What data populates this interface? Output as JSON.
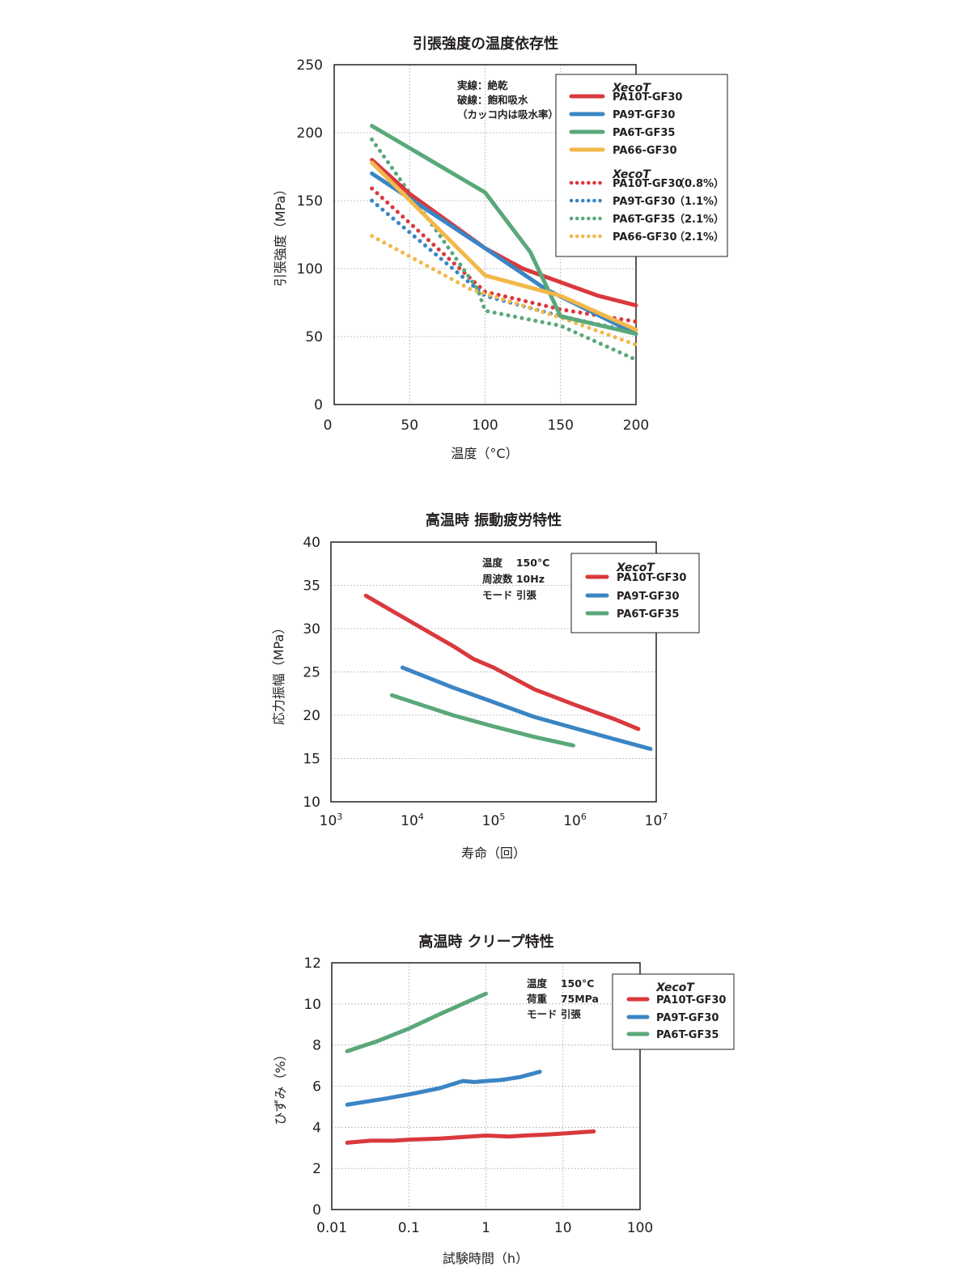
{
  "chart_data": [
    {
      "type": "line",
      "title": "引張強度の温度依存性",
      "xlabel": "温度（°C）",
      "ylabel": "引張強度（MPa）",
      "xlim": [
        0,
        200
      ],
      "ylim": [
        0,
        250
      ],
      "x_ticks": [
        "0",
        "50",
        "100",
        "150",
        "200"
      ],
      "y_ticks": [
        "0",
        "50",
        "100",
        "150",
        "200",
        "250"
      ],
      "notes": [
        "実線：絶乾",
        "破線：飽和吸水",
        "（カッコ内は吸水率）"
      ],
      "brand_label": "XecoT",
      "series": [
        {
          "name": "PA10T-GF30",
          "suffix": "",
          "color": "#d9393d",
          "dashed": false,
          "x": [
            25,
            50,
            100,
            125,
            150,
            175,
            200
          ],
          "y": [
            180,
            155,
            115,
            100,
            90,
            80,
            73
          ]
        },
        {
          "name": "PA9T-GF30",
          "suffix": "",
          "color": "#3a85c3",
          "dashed": false,
          "x": [
            25,
            100,
            140,
            200
          ],
          "y": [
            170,
            115,
            85,
            52
          ]
        },
        {
          "name": "PA6T-GF35",
          "suffix": "",
          "color": "#5aa87a",
          "dashed": false,
          "x": [
            25,
            100,
            130,
            150,
            200
          ],
          "y": [
            205,
            156,
            112,
            65,
            52
          ]
        },
        {
          "name": "PA66-GF30",
          "suffix": "",
          "color": "#f2b84b",
          "dashed": false,
          "x": [
            25,
            100,
            150,
            200
          ],
          "y": [
            178,
            95,
            80,
            55
          ]
        },
        {
          "name": "PA10T-GF30",
          "suffix": "（0.8%）",
          "color": "#d9393d",
          "dashed": true,
          "x": [
            25,
            100,
            150,
            200
          ],
          "y": [
            159,
            83,
            70,
            61
          ]
        },
        {
          "name": "PA9T-GF30",
          "suffix": "（1.1%）",
          "color": "#3a85c3",
          "dashed": true,
          "x": [
            25,
            100,
            150,
            200
          ],
          "y": [
            150,
            80,
            65,
            53
          ]
        },
        {
          "name": "PA6T-GF35",
          "suffix": "（2.1%）",
          "color": "#5aa87a",
          "dashed": true,
          "x": [
            25,
            95,
            100,
            150,
            200
          ],
          "y": [
            195,
            85,
            69,
            58,
            33
          ]
        },
        {
          "name": "PA66-GF30",
          "suffix": "（2.1%）",
          "color": "#f2b84b",
          "dashed": true,
          "x": [
            25,
            90,
            150,
            200
          ],
          "y": [
            124,
            85,
            64,
            44
          ]
        }
      ]
    },
    {
      "type": "line",
      "title": "高温時 振動疲労特性",
      "xlabel": "寿命（回）",
      "ylabel": "応力振幅（MPa）",
      "xscale": "log",
      "xlim_log10": [
        3,
        7
      ],
      "ylim": [
        10,
        40
      ],
      "x_ticks": [
        {
          "base": "10",
          "exp": "3"
        },
        {
          "base": "10",
          "exp": "4"
        },
        {
          "base": "10",
          "exp": "5"
        },
        {
          "base": "10",
          "exp": "6"
        },
        {
          "base": "10",
          "exp": "7"
        }
      ],
      "y_ticks": [
        "10",
        "15",
        "20",
        "25",
        "30",
        "35",
        "40"
      ],
      "notes": [
        "温度　 150°C",
        "周波数  10Hz",
        "モード  引張"
      ],
      "brand_label": "XecoT",
      "series": [
        {
          "name": "PA10T-GF30",
          "color": "#d9393d",
          "x_log10": [
            3.43,
            4.0,
            4.5,
            4.75,
            5.0,
            5.5,
            6.0,
            6.5,
            6.78
          ],
          "y": [
            33.8,
            30.7,
            28.0,
            26.5,
            25.5,
            23.0,
            21.2,
            19.5,
            18.4
          ]
        },
        {
          "name": "PA9T-GF30",
          "color": "#3a85c3",
          "x_log10": [
            3.88,
            4.5,
            5.0,
            5.5,
            6.0,
            6.5,
            6.93
          ],
          "y": [
            25.5,
            23.2,
            21.5,
            19.8,
            18.5,
            17.2,
            16.1
          ]
        },
        {
          "name": "PA6T-GF35",
          "color": "#5aa87a",
          "x_log10": [
            3.75,
            4.5,
            5.0,
            5.5,
            5.98
          ],
          "y": [
            22.3,
            20.0,
            18.7,
            17.5,
            16.5
          ]
        }
      ]
    },
    {
      "type": "line",
      "title": "高温時 クリープ特性",
      "xlabel": "試験時間（h）",
      "ylabel": "ひずみ（%）",
      "xscale": "log",
      "xlim_log10": [
        -2,
        2
      ],
      "ylim": [
        0,
        12
      ],
      "x_ticks": [
        "0.01",
        "0.1",
        "1",
        "10",
        "100"
      ],
      "y_ticks": [
        "0",
        "2",
        "4",
        "6",
        "8",
        "10",
        "12"
      ],
      "notes": [
        "温度　 150°C",
        "荷重　 75MPa",
        "モード  引張"
      ],
      "brand_label": "XecoT",
      "series": [
        {
          "name": "PA10T-GF30",
          "color": "#d9393d",
          "x_log10": [
            -1.8,
            -1.5,
            -1.2,
            -1.0,
            -0.6,
            -0.4,
            -0.2,
            0.0,
            0.3,
            0.5,
            0.8,
            1.0,
            1.4
          ],
          "y": [
            3.25,
            3.35,
            3.35,
            3.4,
            3.45,
            3.5,
            3.55,
            3.6,
            3.55,
            3.6,
            3.65,
            3.7,
            3.8
          ]
        },
        {
          "name": "PA9T-GF30",
          "color": "#3a85c3",
          "x_log10": [
            -1.8,
            -1.3,
            -1.0,
            -0.6,
            -0.3,
            -0.15,
            0.0,
            0.2,
            0.45,
            0.7
          ],
          "y": [
            5.1,
            5.4,
            5.6,
            5.9,
            6.25,
            6.2,
            6.25,
            6.3,
            6.45,
            6.7
          ]
        },
        {
          "name": "PA6T-GF35",
          "color": "#5aa87a",
          "x_log10": [
            -1.8,
            -1.4,
            -1.0,
            -0.6,
            -0.3,
            0.0
          ],
          "y": [
            7.7,
            8.2,
            8.8,
            9.5,
            10.0,
            10.5
          ]
        }
      ]
    }
  ]
}
